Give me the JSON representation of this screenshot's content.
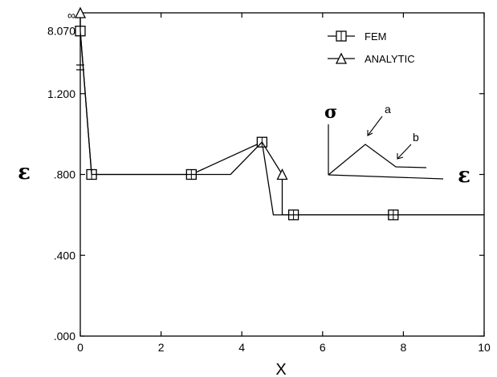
{
  "chart_data": {
    "type": "line",
    "xlabel": "X",
    "ylabel": "ε",
    "xlim": [
      0,
      10
    ],
    "ylim": [
      0,
      1.6
    ],
    "x_ticks": [
      {
        "v": 0,
        "label": "0"
      },
      {
        "v": 2,
        "label": "2"
      },
      {
        "v": 4,
        "label": "4"
      },
      {
        "v": 6,
        "label": "6"
      },
      {
        "v": 8,
        "label": "8"
      },
      {
        "v": 10,
        "label": "10"
      }
    ],
    "y_ticks": [
      {
        "v": 0,
        "label": ".000"
      },
      {
        "v": 0.4,
        "label": ".400"
      },
      {
        "v": 0.8,
        "label": ".800"
      },
      {
        "v": 1.2,
        "label": "1.200"
      }
    ],
    "y_break_labels": [
      {
        "v": 1.51,
        "label": "8.070"
      },
      {
        "v": 1.6,
        "label": "∞"
      }
    ],
    "grid": false,
    "legend_position": "top-right",
    "series": [
      {
        "name": "FEM",
        "marker": "square",
        "x": [
          0,
          0.28,
          2.75,
          4.5,
          4.78,
          5.28,
          7.75,
          10
        ],
        "y": [
          1.51,
          0.8,
          0.8,
          0.96,
          0.6,
          0.6,
          0.6,
          0.6
        ],
        "marked": [
          true,
          true,
          true,
          true,
          false,
          true,
          true,
          false
        ]
      },
      {
        "name": "ANALYTIC",
        "marker": "triangle",
        "x": [
          0,
          0,
          0.28,
          3.72,
          4.5,
          5.0,
          5.0,
          5.28,
          10
        ],
        "y": [
          1.6,
          1.51,
          0.8,
          0.8,
          0.96,
          0.8,
          0.6,
          0.6,
          0.6
        ],
        "marked": [
          true,
          false,
          false,
          false,
          false,
          true,
          false,
          false,
          false
        ]
      }
    ],
    "inset": {
      "y_symbol": "σ",
      "x_symbol": "ε",
      "labels": [
        "a",
        "b"
      ]
    }
  }
}
